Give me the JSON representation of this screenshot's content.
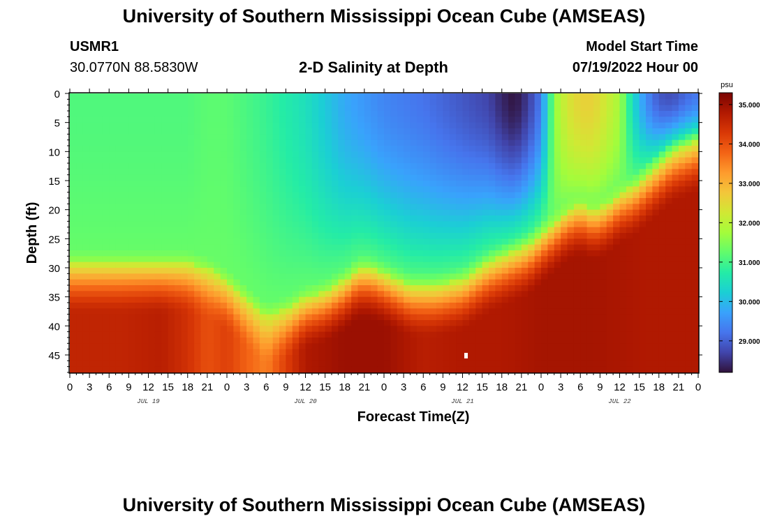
{
  "header": {
    "title": "University of Southern Mississippi Ocean Cube (AMSEAS)",
    "station_id": "USMR1",
    "station_coords": "30.0770N  88.5830W",
    "plot_title": "2-D Salinity at Depth",
    "model_start_label": "Model Start Time",
    "model_start_value": "07/19/2022 Hour 00"
  },
  "footer": {
    "title": "University of Southern Mississippi Ocean Cube (AMSEAS)"
  },
  "chart_data": {
    "type": "heatmap",
    "title": "2-D Salinity at Depth",
    "xlabel": "Forecast Time(Z)",
    "ylabel": "Depth (ft)",
    "x_range_hours": [
      0,
      96
    ],
    "x_tick_step_hours": 3,
    "x_tick_labels": [
      "0",
      "3",
      "6",
      "9",
      "12",
      "15",
      "18",
      "21",
      "0",
      "3",
      "6",
      "9",
      "12",
      "15",
      "18",
      "21",
      "0",
      "3",
      "6",
      "9",
      "12",
      "15",
      "18",
      "21",
      "0",
      "3",
      "6",
      "9",
      "12",
      "15",
      "18",
      "21",
      "0"
    ],
    "day_labels": [
      {
        "label": "JUL 19",
        "hour": 12
      },
      {
        "label": "JUL 20",
        "hour": 36
      },
      {
        "label": "JUL 21",
        "hour": 60
      },
      {
        "label": "JUL 22",
        "hour": 84
      }
    ],
    "ylim": [
      0,
      48
    ],
    "y_ticks": [
      0,
      5,
      10,
      15,
      20,
      25,
      30,
      35,
      40,
      45
    ],
    "colorbar": {
      "unit": "psu",
      "min": 28.2,
      "max": 35.3,
      "tick_values": [
        35,
        34,
        33,
        32,
        31,
        30,
        29
      ],
      "tick_labels": [
        "35.000",
        "34.000",
        "33.000",
        "32.000",
        "31.000",
        "30.000",
        "29.000"
      ],
      "colors": [
        "#30123b",
        "#4145ab",
        "#4675ed",
        "#39a2fc",
        "#1bcfd4",
        "#24eca6",
        "#61fc6c",
        "#a4fc3b",
        "#d1e834",
        "#f3c63a",
        "#fe9b2d",
        "#f36315",
        "#d93806",
        "#b11901",
        "#7a0403"
      ]
    },
    "surface_salinity_psu": [
      [
        0,
        31.1
      ],
      [
        6,
        31.1
      ],
      [
        12,
        31.1
      ],
      [
        18,
        31.1
      ],
      [
        21,
        31.2
      ],
      [
        24,
        31.2
      ],
      [
        30,
        30.9
      ],
      [
        36,
        30.5
      ],
      [
        42,
        29.8
      ],
      [
        48,
        29.4
      ],
      [
        54,
        29.2
      ],
      [
        60,
        28.9
      ],
      [
        62,
        28.8
      ],
      [
        64,
        28.7
      ],
      [
        66,
        28.4
      ],
      [
        68,
        28.2
      ],
      [
        70,
        28.6
      ],
      [
        72,
        29.3
      ],
      [
        74,
        31.6
      ],
      [
        76,
        32.3
      ],
      [
        78,
        32.6
      ],
      [
        80,
        32.6
      ],
      [
        82,
        32.2
      ],
      [
        84,
        31.8
      ],
      [
        86,
        30.4
      ],
      [
        88,
        29.5
      ],
      [
        90,
        28.9
      ],
      [
        92,
        28.8
      ],
      [
        94,
        29.1
      ],
      [
        96,
        29.3
      ]
    ],
    "halocline_depth_ft": [
      [
        0,
        29
      ],
      [
        6,
        29
      ],
      [
        12,
        29
      ],
      [
        18,
        29
      ],
      [
        21,
        30
      ],
      [
        24,
        32
      ],
      [
        27,
        35
      ],
      [
        30,
        38
      ],
      [
        33,
        37
      ],
      [
        36,
        35
      ],
      [
        39,
        34
      ],
      [
        42,
        32
      ],
      [
        44,
        30
      ],
      [
        46,
        30
      ],
      [
        48,
        31
      ],
      [
        52,
        33
      ],
      [
        56,
        33
      ],
      [
        60,
        32
      ],
      [
        64,
        29
      ],
      [
        68,
        27
      ],
      [
        70,
        26
      ],
      [
        72,
        24
      ],
      [
        74,
        22
      ],
      [
        76,
        20
      ],
      [
        78,
        19
      ],
      [
        80,
        20
      ],
      [
        82,
        19
      ],
      [
        84,
        17
      ],
      [
        86,
        16
      ],
      [
        88,
        14
      ],
      [
        90,
        12
      ],
      [
        92,
        10
      ],
      [
        94,
        9
      ],
      [
        96,
        8
      ]
    ],
    "bottom_salinity_psu": [
      [
        0,
        34.6
      ],
      [
        8,
        34.6
      ],
      [
        14,
        34.7
      ],
      [
        18,
        34.4
      ],
      [
        21,
        34.0
      ],
      [
        24,
        34.2
      ],
      [
        27,
        33.8
      ],
      [
        30,
        33.5
      ],
      [
        33,
        34.2
      ],
      [
        36,
        34.8
      ],
      [
        42,
        35.0
      ],
      [
        48,
        35.0
      ],
      [
        54,
        34.7
      ],
      [
        60,
        34.8
      ],
      [
        66,
        34.8
      ],
      [
        72,
        34.9
      ],
      [
        80,
        34.9
      ],
      [
        88,
        34.8
      ],
      [
        96,
        34.8
      ]
    ]
  }
}
